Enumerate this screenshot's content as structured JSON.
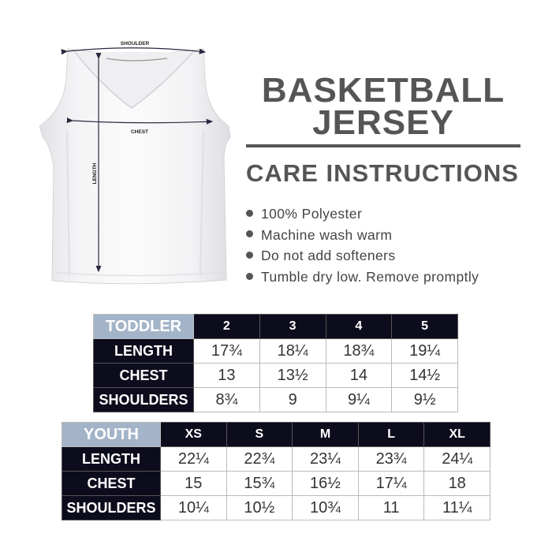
{
  "diagram": {
    "shoulder_label": "SHOULDER",
    "chest_label": "CHEST",
    "length_label": "LENGTH"
  },
  "title": {
    "line1": "BASKETBALL",
    "line2": "JERSEY"
  },
  "care": {
    "heading": "CARE INSTRUCTIONS",
    "items": [
      "100% Polyester",
      "Machine wash warm",
      "Do not add softeners",
      "Tumble dry low. Remove promptly"
    ]
  },
  "toddler": {
    "label": "TODDLER",
    "sizes": [
      "2",
      "3",
      "4",
      "5"
    ],
    "rows": [
      {
        "label": "LENGTH",
        "values": [
          "17¾",
          "18¼",
          "18¾",
          "19¼"
        ]
      },
      {
        "label": "CHEST",
        "values": [
          "13",
          "13½",
          "14",
          "14½"
        ]
      },
      {
        "label": "SHOULDERS",
        "values": [
          "8¾",
          "9",
          "9¼",
          "9½"
        ]
      }
    ]
  },
  "youth": {
    "label": "YOUTH",
    "sizes": [
      "XS",
      "S",
      "M",
      "L",
      "XL"
    ],
    "rows": [
      {
        "label": "LENGTH",
        "values": [
          "22¼",
          "22¾",
          "23¼",
          "23¾",
          "24¼"
        ]
      },
      {
        "label": "CHEST",
        "values": [
          "15",
          "15¾",
          "16½",
          "17¼",
          "18"
        ]
      },
      {
        "label": "SHOULDERS",
        "values": [
          "10¼",
          "10½",
          "10¾",
          "11",
          "11¼"
        ]
      }
    ]
  },
  "colors": {
    "header_dark": "#0c0c1c",
    "corner_blue": "#a3b4c8",
    "text_gray": "#555555"
  }
}
